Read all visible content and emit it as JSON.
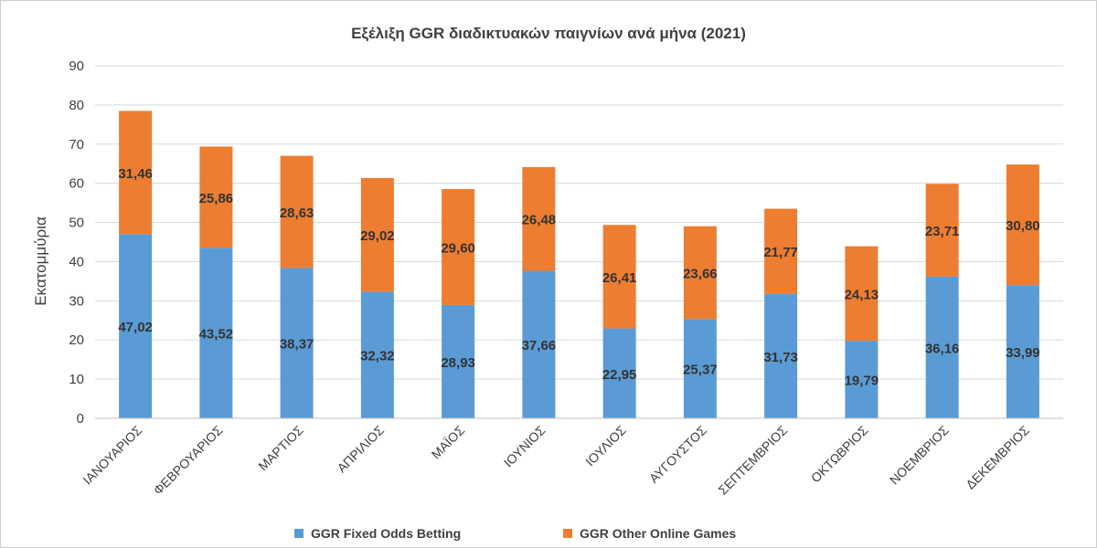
{
  "chart_data": {
    "type": "bar",
    "stacked": true,
    "title": "Εξέλιξη GGR διαδικτυακών παιγνίων ανά μήνα (2021)",
    "xlabel": "",
    "ylabel": "Εκατομμύρια",
    "ylim": [
      0,
      90
    ],
    "yticks": [
      0,
      10,
      20,
      30,
      40,
      50,
      60,
      70,
      80,
      90
    ],
    "grid": true,
    "legend_position": "bottom",
    "categories": [
      "ΙΑΝΟΥΑΡΙΟΣ",
      "ΦΕΒΡΟΥΑΡΙΟΣ",
      "ΜΑΡΤΙΟΣ",
      "ΑΠΡΙΛΙΟΣ",
      "ΜΑΪΟΣ",
      "ΙΟΥΝΙΟΣ",
      "ΙΟΥΛΙΟΣ",
      "ΑΥΓΟΥΣΤΟΣ",
      "ΣΕΠΤΕΜΒΡΙΟΣ",
      "ΟΚΤΩΒΡΙΟΣ",
      "ΝΟΕΜΒΡΙΟΣ",
      "ΔΕΚΕΜΒΡΙΟΣ"
    ],
    "series": [
      {
        "name": "GGR Fixed Odds Betting",
        "color": "#5b9bd5",
        "values": [
          47.02,
          43.52,
          38.37,
          32.32,
          28.93,
          37.66,
          22.95,
          25.37,
          31.73,
          19.79,
          36.16,
          33.99
        ],
        "labels": [
          "47,02",
          "43,52",
          "38,37",
          "32,32",
          "28,93",
          "37,66",
          "22,95",
          "25,37",
          "31,73",
          "19,79",
          "36,16",
          "33,99"
        ]
      },
      {
        "name": "GGR Other Online Games",
        "color": "#ed7d31",
        "values": [
          31.46,
          25.86,
          28.63,
          29.02,
          29.6,
          26.48,
          26.41,
          23.66,
          21.77,
          24.13,
          23.71,
          30.8
        ],
        "labels": [
          "31,46",
          "25,86",
          "28,63",
          "29,02",
          "29,60",
          "26,48",
          "26,41",
          "23,66",
          "21,77",
          "24,13",
          "23,71",
          "30,80"
        ]
      }
    ]
  }
}
